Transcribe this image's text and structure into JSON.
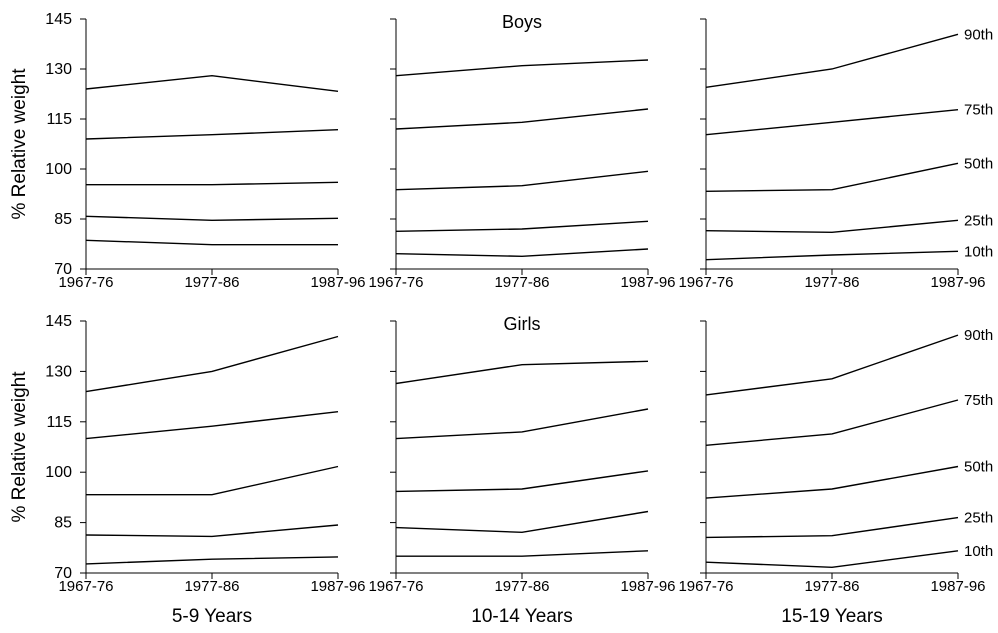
{
  "chart_data": {
    "type": "line",
    "y_label": "% Relative weight",
    "y_ticks": [
      70,
      85,
      100,
      115,
      130,
      145
    ],
    "ylim": [
      70,
      145
    ],
    "categories": [
      "1967-76",
      "1977-86",
      "1987-96"
    ],
    "column_labels": [
      "5-9 Years",
      "10-14 Years",
      "15-19 Years"
    ],
    "percentile_labels": [
      "90th",
      "75th",
      "50th",
      "25th",
      "10th"
    ],
    "rows": [
      {
        "title": "Boys",
        "panels": [
          {
            "series": [
              {
                "name": "90th",
                "values": [
                  124,
                  128,
                  123.3
                ]
              },
              {
                "name": "75th",
                "values": [
                  109,
                  110.3,
                  111.8
                ]
              },
              {
                "name": "50th",
                "values": [
                  95.3,
                  95.3,
                  96
                ]
              },
              {
                "name": "25th",
                "values": [
                  85.8,
                  84.6,
                  85.2
                ]
              },
              {
                "name": "10th",
                "values": [
                  78.6,
                  77.3,
                  77.3
                ]
              }
            ]
          },
          {
            "series": [
              {
                "name": "90th",
                "values": [
                  128,
                  131,
                  132.7
                ]
              },
              {
                "name": "75th",
                "values": [
                  112,
                  114,
                  118
                ]
              },
              {
                "name": "50th",
                "values": [
                  93.8,
                  95,
                  99.3
                ]
              },
              {
                "name": "25th",
                "values": [
                  81.3,
                  82,
                  84.3
                ]
              },
              {
                "name": "10th",
                "values": [
                  74.6,
                  73.8,
                  76
                ]
              }
            ]
          },
          {
            "series": [
              {
                "name": "90th",
                "values": [
                  124.5,
                  130,
                  140.4
                ]
              },
              {
                "name": "75th",
                "values": [
                  110.3,
                  114,
                  117.8
                ]
              },
              {
                "name": "50th",
                "values": [
                  93.3,
                  93.8,
                  101.7
                ]
              },
              {
                "name": "25th",
                "values": [
                  81.5,
                  81,
                  84.6
                ]
              },
              {
                "name": "10th",
                "values": [
                  72.8,
                  74.2,
                  75.3
                ]
              }
            ]
          }
        ]
      },
      {
        "title": "Girls",
        "panels": [
          {
            "series": [
              {
                "name": "90th",
                "values": [
                  124,
                  130,
                  140.4
                ]
              },
              {
                "name": "75th",
                "values": [
                  110,
                  113.7,
                  118
                ]
              },
              {
                "name": "50th",
                "values": [
                  93.3,
                  93.3,
                  101.7
                ]
              },
              {
                "name": "25th",
                "values": [
                  81.3,
                  80.9,
                  84.3
                ]
              },
              {
                "name": "10th",
                "values": [
                  72.7,
                  74.1,
                  74.8
                ]
              }
            ]
          },
          {
            "series": [
              {
                "name": "90th",
                "values": [
                  126.4,
                  132,
                  133
                ]
              },
              {
                "name": "75th",
                "values": [
                  110,
                  112,
                  118.8
                ]
              },
              {
                "name": "50th",
                "values": [
                  94.3,
                  95,
                  100.4
                ]
              },
              {
                "name": "25th",
                "values": [
                  83.5,
                  82.1,
                  88.3
                ]
              },
              {
                "name": "10th",
                "values": [
                  75,
                  75,
                  76.6
                ]
              }
            ]
          },
          {
            "series": [
              {
                "name": "90th",
                "values": [
                  123,
                  127.8,
                  140.8
                ]
              },
              {
                "name": "75th",
                "values": [
                  108,
                  111.4,
                  121.5
                ]
              },
              {
                "name": "50th",
                "values": [
                  92.3,
                  95,
                  101.7
                ]
              },
              {
                "name": "25th",
                "values": [
                  80.6,
                  81.1,
                  86.5
                ]
              },
              {
                "name": "10th",
                "values": [
                  73.2,
                  71.7,
                  76.6
                ]
              }
            ]
          }
        ]
      }
    ]
  }
}
